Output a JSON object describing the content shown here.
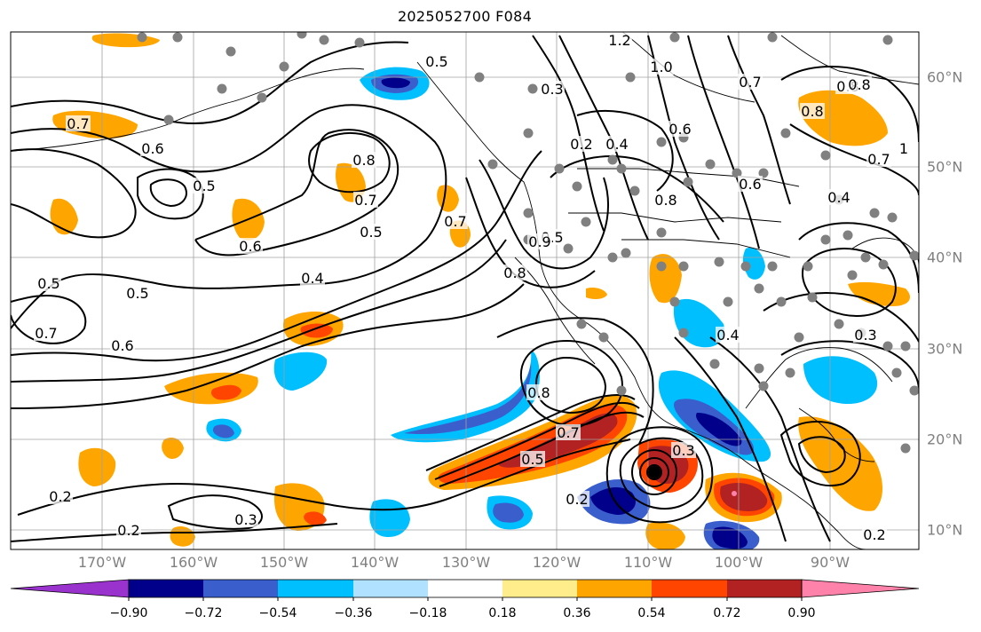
{
  "title": "2025052700 F084",
  "lon_labels": [
    "170°W",
    "160°W",
    "150°W",
    "140°W",
    "130°W",
    "120°W",
    "110°W",
    "100°W",
    "90°W"
  ],
  "lat_labels": [
    "60°N",
    "50°N",
    "40°N",
    "30°N",
    "20°N",
    "10°N"
  ],
  "colorbar": {
    "ticks": [
      "−0.90",
      "−0.72",
      "−0.54",
      "−0.36",
      "−0.18",
      "0.18",
      "0.36",
      "0.54",
      "0.72",
      "0.90"
    ],
    "colors": [
      "#9a32cd",
      "#00008b",
      "#3a5fcd",
      "#00bfff",
      "#b0e2ff",
      "#ffffff",
      "#ffec8b",
      "#ffa500",
      "#ff4500",
      "#b22222",
      "#ff82ab"
    ]
  },
  "contour_labels": [
    "1.2",
    "1.0",
    "0.5",
    "0.8",
    "0.7",
    "0.6",
    "0.5",
    "0.6",
    "0.8",
    "0.7",
    "0.5",
    "0.4",
    "0.5",
    "0.5",
    "0.7",
    "0.6",
    "0.7",
    "0.8",
    "0.3",
    "0.2",
    "0.4",
    "0.8",
    "0.6",
    "0.7",
    "0.6",
    "0.5",
    "0.2",
    "0.3",
    "0.2",
    "0.8",
    "0.3",
    "0.4",
    "0.2",
    "0.8",
    "0.7",
    "1",
    "0.7",
    "0.4",
    "0.8",
    "0.9",
    "0.5",
    "0.3",
    "0.2"
  ],
  "map": {
    "projection": "cylindrical",
    "lon_range": [
      -179,
      -80
    ],
    "lat_range": [
      8,
      65
    ]
  }
}
